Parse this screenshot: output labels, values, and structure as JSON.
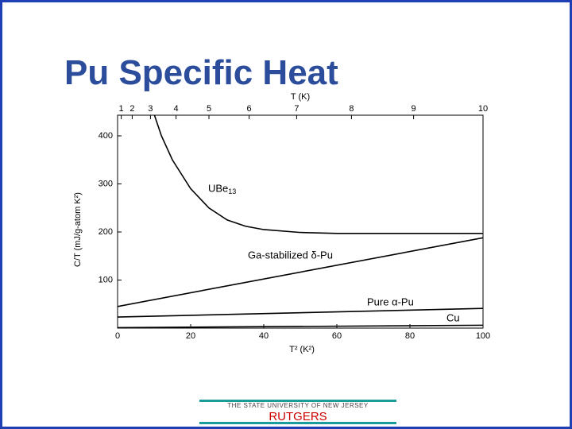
{
  "title": "Pu Specific Heat",
  "chart_data": {
    "type": "line",
    "xlabel": "T² (K²)",
    "ylabel": "C/T (mJ/g-atom K²)",
    "x2label": "T (K)",
    "xlim": [
      0,
      100
    ],
    "xticks": [
      0,
      20,
      40,
      60,
      80,
      100
    ],
    "ylim": [
      0,
      443
    ],
    "yticks": [
      100,
      200,
      300,
      400
    ],
    "x2scale": "sqrt",
    "x2lim": [
      0,
      10
    ],
    "x2ticks": [
      1,
      2,
      3,
      4,
      5,
      6,
      7,
      8,
      9,
      10
    ],
    "series": [
      {
        "name": "UBe13",
        "color": "#000000",
        "x": [
          10,
          12,
          15,
          20,
          25,
          30,
          35,
          40,
          50,
          60,
          80,
          100
        ],
        "values": [
          445,
          400,
          350,
          290,
          250,
          225,
          212,
          205,
          199,
          197,
          197,
          197
        ]
      },
      {
        "name": "Ga-stabilized δ-Pu",
        "color": "#000000",
        "x": [
          0,
          100
        ],
        "values": [
          45,
          188
        ]
      },
      {
        "name": "Pure α-Pu",
        "color": "#000000",
        "x": [
          0,
          100
        ],
        "values": [
          23,
          41
        ]
      },
      {
        "name": "Cu",
        "color": "#000000",
        "x": [
          0,
          100
        ],
        "values": [
          1,
          6
        ]
      }
    ]
  },
  "footer": {
    "university": "THE STATE UNIVERSITY OF NEW JERSEY",
    "name": "RUTGERS"
  }
}
